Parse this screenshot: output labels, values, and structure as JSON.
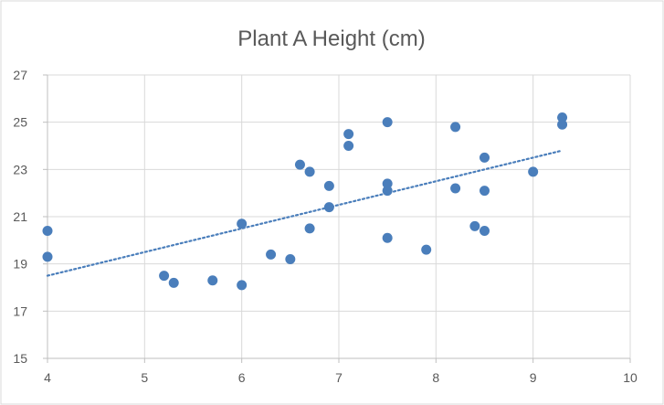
{
  "chart_data": {
    "type": "scatter",
    "title": "Plant A Height (cm)",
    "xlabel": "",
    "ylabel": "",
    "xlim": [
      4,
      10
    ],
    "ylim": [
      15,
      27
    ],
    "xticks": [
      4,
      5,
      6,
      7,
      8,
      9,
      10
    ],
    "yticks": [
      15,
      17,
      19,
      21,
      23,
      25,
      27
    ],
    "grid": true,
    "legend": "none",
    "marker_color": "#4A7EBB",
    "trendline": {
      "type": "linear",
      "style": "dotted",
      "color": "#4A7EBB",
      "x_start": 4,
      "y_start": 18.5,
      "x_end": 9.3,
      "y_end": 23.8
    },
    "series": [
      {
        "x": [
          4,
          4,
          5.2,
          5.3,
          5.7,
          6,
          6,
          6.3,
          6.5,
          6.6,
          6.7,
          6.7,
          6.9,
          6.9,
          7.1,
          7.1,
          7.5,
          7.5,
          7.5,
          7.5,
          7.9,
          8.2,
          8.2,
          8.4,
          8.5,
          8.5,
          8.5,
          9,
          9.3,
          9.3
        ],
        "y": [
          20.4,
          19.3,
          18.5,
          18.2,
          18.3,
          18.1,
          20.7,
          19.4,
          19.2,
          23.2,
          22.9,
          20.5,
          22.3,
          21.4,
          24.5,
          24.0,
          25.0,
          22.4,
          22.1,
          20.1,
          19.6,
          24.8,
          22.2,
          20.6,
          23.5,
          22.1,
          20.4,
          22.9,
          25.2,
          24.9
        ]
      }
    ]
  }
}
